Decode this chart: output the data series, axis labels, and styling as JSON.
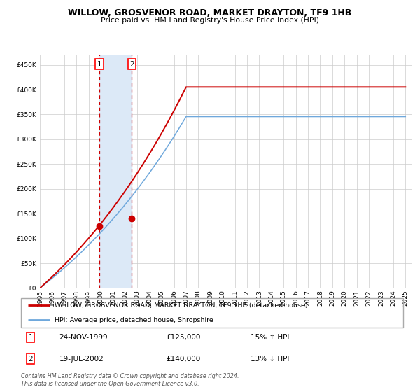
{
  "title": "WILLOW, GROSVENOR ROAD, MARKET DRAYTON, TF9 1HB",
  "subtitle": "Price paid vs. HM Land Registry's House Price Index (HPI)",
  "legend_line1": "WILLOW, GROSVENOR ROAD, MARKET DRAYTON, TF9 1HB (detached house)",
  "legend_line2": "HPI: Average price, detached house, Shropshire",
  "footnote": "Contains HM Land Registry data © Crown copyright and database right 2024.\nThis data is licensed under the Open Government Licence v3.0.",
  "transaction1_date": "24-NOV-1999",
  "transaction1_price": "£125,000",
  "transaction1_hpi": "15% ↑ HPI",
  "transaction2_date": "19-JUL-2002",
  "transaction2_price": "£140,000",
  "transaction2_hpi": "13% ↓ HPI",
  "hpi_color": "#6fa8dc",
  "price_color": "#cc0000",
  "dot_color": "#cc0000",
  "shade_color": "#dce9f7",
  "vline_color": "#cc0000",
  "background_color": "#ffffff",
  "grid_color": "#cccccc",
  "ylim": [
    0,
    470000
  ],
  "yticks": [
    0,
    50000,
    100000,
    150000,
    200000,
    250000,
    300000,
    350000,
    400000,
    450000
  ],
  "transaction1_year": 1999.9,
  "transaction2_year": 2002.55,
  "transaction1_price_val": 125000,
  "transaction2_price_val": 140000
}
